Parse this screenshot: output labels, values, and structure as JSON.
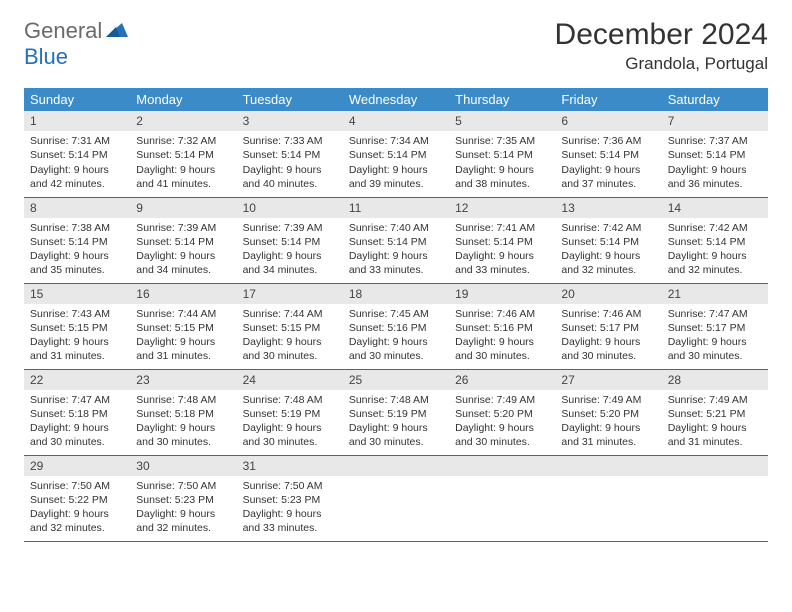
{
  "logo": {
    "general": "General",
    "blue": "Blue"
  },
  "title": "December 2024",
  "location": "Grandola, Portugal",
  "colors": {
    "header_bg": "#3b8bc9",
    "header_text": "#ffffff",
    "daynum_bg": "#e8e8e8",
    "row_border": "#2e6ea8",
    "logo_gray": "#6a6a6a",
    "logo_blue": "#2371b8"
  },
  "weekdays": [
    "Sunday",
    "Monday",
    "Tuesday",
    "Wednesday",
    "Thursday",
    "Friday",
    "Saturday"
  ],
  "weeks": [
    [
      {
        "n": "1",
        "sr": "Sunrise: 7:31 AM",
        "ss": "Sunset: 5:14 PM",
        "dl": "Daylight: 9 hours and 42 minutes."
      },
      {
        "n": "2",
        "sr": "Sunrise: 7:32 AM",
        "ss": "Sunset: 5:14 PM",
        "dl": "Daylight: 9 hours and 41 minutes."
      },
      {
        "n": "3",
        "sr": "Sunrise: 7:33 AM",
        "ss": "Sunset: 5:14 PM",
        "dl": "Daylight: 9 hours and 40 minutes."
      },
      {
        "n": "4",
        "sr": "Sunrise: 7:34 AM",
        "ss": "Sunset: 5:14 PM",
        "dl": "Daylight: 9 hours and 39 minutes."
      },
      {
        "n": "5",
        "sr": "Sunrise: 7:35 AM",
        "ss": "Sunset: 5:14 PM",
        "dl": "Daylight: 9 hours and 38 minutes."
      },
      {
        "n": "6",
        "sr": "Sunrise: 7:36 AM",
        "ss": "Sunset: 5:14 PM",
        "dl": "Daylight: 9 hours and 37 minutes."
      },
      {
        "n": "7",
        "sr": "Sunrise: 7:37 AM",
        "ss": "Sunset: 5:14 PM",
        "dl": "Daylight: 9 hours and 36 minutes."
      }
    ],
    [
      {
        "n": "8",
        "sr": "Sunrise: 7:38 AM",
        "ss": "Sunset: 5:14 PM",
        "dl": "Daylight: 9 hours and 35 minutes."
      },
      {
        "n": "9",
        "sr": "Sunrise: 7:39 AM",
        "ss": "Sunset: 5:14 PM",
        "dl": "Daylight: 9 hours and 34 minutes."
      },
      {
        "n": "10",
        "sr": "Sunrise: 7:39 AM",
        "ss": "Sunset: 5:14 PM",
        "dl": "Daylight: 9 hours and 34 minutes."
      },
      {
        "n": "11",
        "sr": "Sunrise: 7:40 AM",
        "ss": "Sunset: 5:14 PM",
        "dl": "Daylight: 9 hours and 33 minutes."
      },
      {
        "n": "12",
        "sr": "Sunrise: 7:41 AM",
        "ss": "Sunset: 5:14 PM",
        "dl": "Daylight: 9 hours and 33 minutes."
      },
      {
        "n": "13",
        "sr": "Sunrise: 7:42 AM",
        "ss": "Sunset: 5:14 PM",
        "dl": "Daylight: 9 hours and 32 minutes."
      },
      {
        "n": "14",
        "sr": "Sunrise: 7:42 AM",
        "ss": "Sunset: 5:14 PM",
        "dl": "Daylight: 9 hours and 32 minutes."
      }
    ],
    [
      {
        "n": "15",
        "sr": "Sunrise: 7:43 AM",
        "ss": "Sunset: 5:15 PM",
        "dl": "Daylight: 9 hours and 31 minutes."
      },
      {
        "n": "16",
        "sr": "Sunrise: 7:44 AM",
        "ss": "Sunset: 5:15 PM",
        "dl": "Daylight: 9 hours and 31 minutes."
      },
      {
        "n": "17",
        "sr": "Sunrise: 7:44 AM",
        "ss": "Sunset: 5:15 PM",
        "dl": "Daylight: 9 hours and 30 minutes."
      },
      {
        "n": "18",
        "sr": "Sunrise: 7:45 AM",
        "ss": "Sunset: 5:16 PM",
        "dl": "Daylight: 9 hours and 30 minutes."
      },
      {
        "n": "19",
        "sr": "Sunrise: 7:46 AM",
        "ss": "Sunset: 5:16 PM",
        "dl": "Daylight: 9 hours and 30 minutes."
      },
      {
        "n": "20",
        "sr": "Sunrise: 7:46 AM",
        "ss": "Sunset: 5:17 PM",
        "dl": "Daylight: 9 hours and 30 minutes."
      },
      {
        "n": "21",
        "sr": "Sunrise: 7:47 AM",
        "ss": "Sunset: 5:17 PM",
        "dl": "Daylight: 9 hours and 30 minutes."
      }
    ],
    [
      {
        "n": "22",
        "sr": "Sunrise: 7:47 AM",
        "ss": "Sunset: 5:18 PM",
        "dl": "Daylight: 9 hours and 30 minutes."
      },
      {
        "n": "23",
        "sr": "Sunrise: 7:48 AM",
        "ss": "Sunset: 5:18 PM",
        "dl": "Daylight: 9 hours and 30 minutes."
      },
      {
        "n": "24",
        "sr": "Sunrise: 7:48 AM",
        "ss": "Sunset: 5:19 PM",
        "dl": "Daylight: 9 hours and 30 minutes."
      },
      {
        "n": "25",
        "sr": "Sunrise: 7:48 AM",
        "ss": "Sunset: 5:19 PM",
        "dl": "Daylight: 9 hours and 30 minutes."
      },
      {
        "n": "26",
        "sr": "Sunrise: 7:49 AM",
        "ss": "Sunset: 5:20 PM",
        "dl": "Daylight: 9 hours and 30 minutes."
      },
      {
        "n": "27",
        "sr": "Sunrise: 7:49 AM",
        "ss": "Sunset: 5:20 PM",
        "dl": "Daylight: 9 hours and 31 minutes."
      },
      {
        "n": "28",
        "sr": "Sunrise: 7:49 AM",
        "ss": "Sunset: 5:21 PM",
        "dl": "Daylight: 9 hours and 31 minutes."
      }
    ],
    [
      {
        "n": "29",
        "sr": "Sunrise: 7:50 AM",
        "ss": "Sunset: 5:22 PM",
        "dl": "Daylight: 9 hours and 32 minutes."
      },
      {
        "n": "30",
        "sr": "Sunrise: 7:50 AM",
        "ss": "Sunset: 5:23 PM",
        "dl": "Daylight: 9 hours and 32 minutes."
      },
      {
        "n": "31",
        "sr": "Sunrise: 7:50 AM",
        "ss": "Sunset: 5:23 PM",
        "dl": "Daylight: 9 hours and 33 minutes."
      },
      null,
      null,
      null,
      null
    ]
  ]
}
